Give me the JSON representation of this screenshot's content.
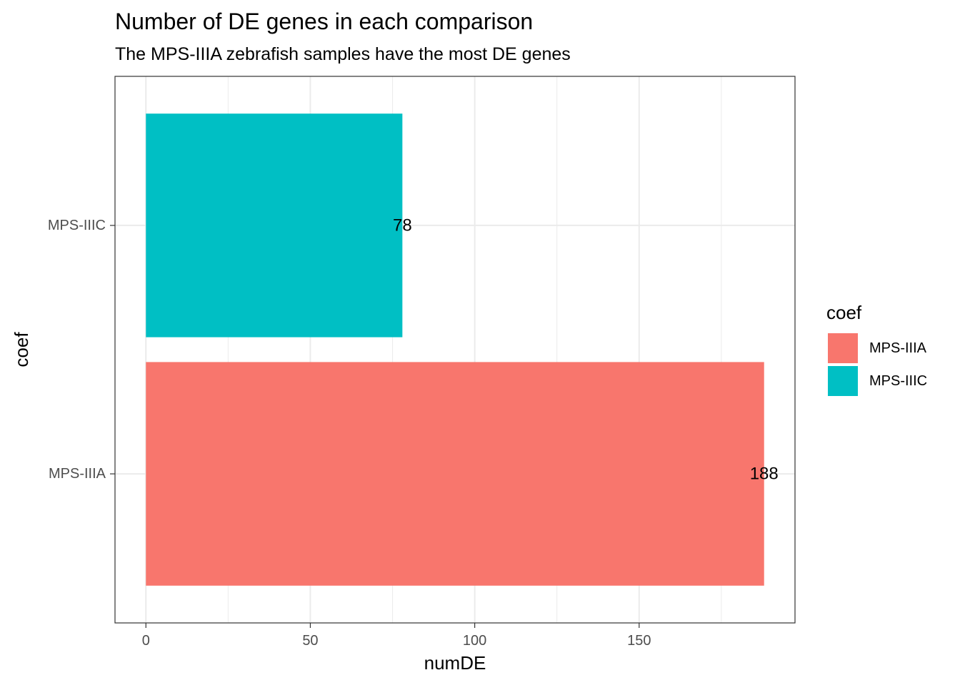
{
  "chart_data": {
    "type": "bar",
    "orientation": "horizontal",
    "title": "Number of DE genes in each comparison",
    "subtitle": "The MPS-IIIA zebrafish samples have the most DE genes",
    "xlabel": "numDE",
    "ylabel": "coef",
    "xlim": [
      -9.4,
      197.4
    ],
    "x_ticks": [
      0,
      50,
      100,
      150
    ],
    "categories": [
      "MPS-IIIA",
      "MPS-IIIC"
    ],
    "values": [
      188,
      78
    ],
    "colors": {
      "MPS-IIIA": "#F8766D",
      "MPS-IIIC": "#00BFC4"
    },
    "data_labels": [
      "188",
      "78"
    ],
    "grid": true,
    "legend": {
      "title": "coef",
      "position": "right",
      "entries": [
        "MPS-IIIA",
        "MPS-IIIC"
      ]
    }
  }
}
